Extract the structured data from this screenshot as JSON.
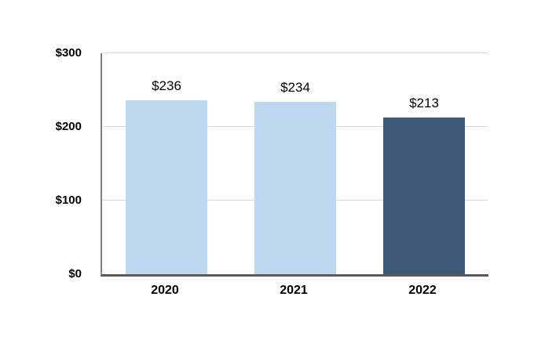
{
  "chart_data": {
    "type": "bar",
    "title": "",
    "xlabel": "",
    "ylabel": "",
    "categories": [
      "2020",
      "2021",
      "2022"
    ],
    "values": [
      236,
      234,
      213
    ],
    "value_labels": [
      "$236",
      "$234",
      "$213"
    ],
    "bar_colors": [
      "#BDD7EE",
      "#BDD7EE",
      "#3D5A78"
    ],
    "ylim": [
      0,
      300
    ],
    "yticks": [
      0,
      100,
      200,
      300
    ],
    "ytick_labels": [
      "$0",
      "$100",
      "$200",
      "$300"
    ],
    "grid": true,
    "legend": "none"
  },
  "colors": {
    "light_bar": "#BDD7EE",
    "dark_bar": "#3D5A78",
    "gridline": "#D9D9D9",
    "axis": "#595959",
    "background": "#FFFFFF"
  }
}
